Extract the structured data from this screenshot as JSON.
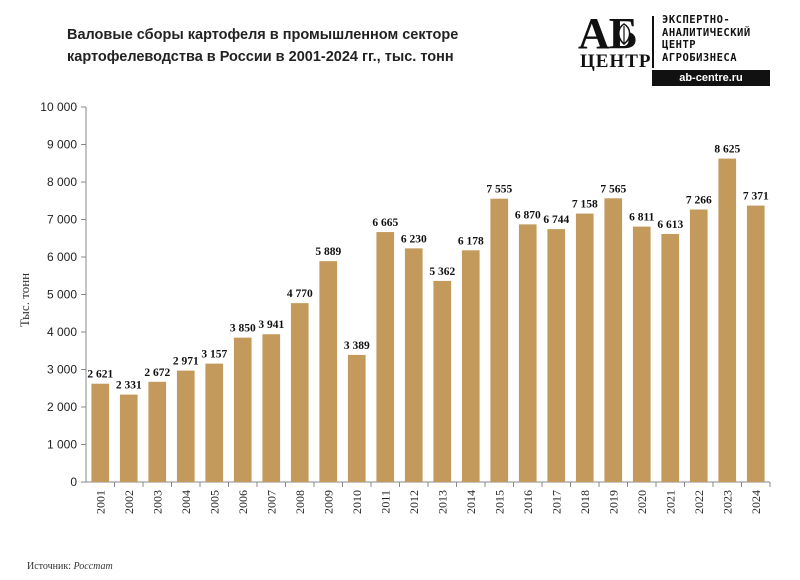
{
  "header": {
    "title_line1": "Валовые сборы картофеля в промышленном  секторе",
    "title_line2": "картофелеводства  в России в 2001-2024 гг., тыс. тонн"
  },
  "logo": {
    "mark": "АБ",
    "centr": "ЦЕНТР",
    "line1": "ЭКСПЕРТНО-",
    "line2": "АНАЛИТИЧЕСКИЙ",
    "line3": "ЦЕНТР",
    "line4": "АГРОБИЗНЕСА",
    "url": "ab-centre.ru"
  },
  "source": {
    "label": "Источник:",
    "name": "Росстат"
  },
  "chart_data": {
    "type": "bar",
    "categories": [
      "2001",
      "2002",
      "2003",
      "2004",
      "2005",
      "2006",
      "2007",
      "2008",
      "2009",
      "2010",
      "2011",
      "2012",
      "2013",
      "2014",
      "2015",
      "2016",
      "2017",
      "2018",
      "2019",
      "2020",
      "2021",
      "2022",
      "2023",
      "2024"
    ],
    "values": [
      2621,
      2331,
      2672,
      2971,
      3157,
      3850,
      3941,
      4770,
      5889,
      3389,
      6665,
      6230,
      5362,
      6178,
      7555,
      6870,
      6744,
      7158,
      7565,
      6811,
      6613,
      7266,
      8625,
      7371
    ],
    "value_labels": [
      "2 621",
      "2 331",
      "2 672",
      "2 971",
      "3 157",
      "3 850",
      "3 941",
      "4 770",
      "5 889",
      "3 389",
      "6 665",
      "6 230",
      "5 362",
      "6 178",
      "7 555",
      "6 870",
      "6 744",
      "7 158",
      "7 565",
      "6 811",
      "6 613",
      "7 266",
      "8 625",
      "7 371"
    ],
    "ylabel": "Тыс. тонн",
    "xlabel": "",
    "ylim": [
      0,
      10000
    ],
    "yticks": [
      0,
      1000,
      2000,
      3000,
      4000,
      5000,
      6000,
      7000,
      8000,
      9000,
      10000
    ],
    "ytick_labels": [
      "0",
      "1 000",
      "2 000",
      "3 000",
      "4 000",
      "5 000",
      "6 000",
      "7 000",
      "8 000",
      "9 000",
      "10 000"
    ],
    "grid": false,
    "legend": "none",
    "bar_color": "#c49a5c"
  }
}
